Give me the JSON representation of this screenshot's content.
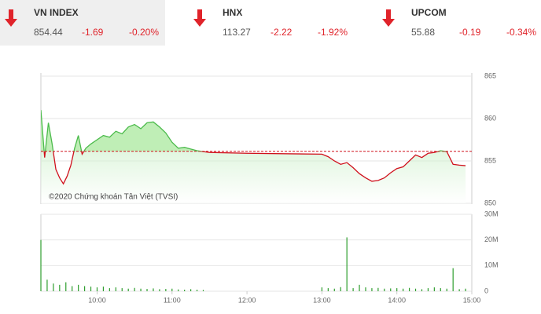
{
  "indices": [
    {
      "name": "VN INDEX",
      "value": 854.44,
      "change": -1.69,
      "percent": "-0.20%"
    },
    {
      "name": "HNX",
      "value": 113.27,
      "change": -2.22,
      "percent": "-1.92%"
    },
    {
      "name": "UPCOM",
      "value": 55.88,
      "change": -0.19,
      "percent": "-0.34%"
    }
  ],
  "chart_data": [
    {
      "type": "line",
      "annotation": "©2020 Chứng khoán Tân Việt (TVSI)",
      "x": [
        555,
        558,
        561,
        564,
        567,
        570,
        573,
        576,
        579,
        582,
        585,
        588,
        591,
        595,
        600,
        605,
        610,
        615,
        620,
        625,
        630,
        635,
        640,
        645,
        650,
        655,
        660,
        665,
        670,
        675,
        680,
        690,
        720,
        780,
        785,
        790,
        795,
        800,
        805,
        810,
        815,
        820,
        825,
        830,
        835,
        840,
        845,
        850,
        855,
        860,
        865,
        870,
        875,
        880,
        885,
        890,
        895
      ],
      "values": [
        861.0,
        855.4,
        859.5,
        857.0,
        854.0,
        853.0,
        852.3,
        853.2,
        854.5,
        856.5,
        858.0,
        855.8,
        856.5,
        857.0,
        857.5,
        858.0,
        857.8,
        858.5,
        858.2,
        859.0,
        859.3,
        858.8,
        859.5,
        859.6,
        859.0,
        858.3,
        857.2,
        856.5,
        856.6,
        856.4,
        856.2,
        856.0,
        855.9,
        855.8,
        855.5,
        855.0,
        854.6,
        854.8,
        854.2,
        853.5,
        853.0,
        852.6,
        852.7,
        853.0,
        853.6,
        854.1,
        854.3,
        855.0,
        855.7,
        855.4,
        855.9,
        856.0,
        856.2,
        856.1,
        854.6,
        854.5,
        854.44
      ],
      "reference_line": 856.13,
      "color_up": "#4cbb4c",
      "color_down": "#d0101c",
      "reference_color": "#d0101c",
      "xlim": [
        555,
        900
      ],
      "ylim": [
        850,
        865
      ],
      "yticks": [
        850,
        855,
        860,
        865
      ],
      "grid": true
    },
    {
      "type": "bar",
      "x": [
        555,
        560,
        565,
        570,
        575,
        580,
        585,
        590,
        595,
        600,
        605,
        610,
        615,
        620,
        625,
        630,
        635,
        640,
        645,
        650,
        655,
        660,
        665,
        670,
        675,
        680,
        685,
        780,
        785,
        790,
        795,
        800,
        805,
        810,
        815,
        820,
        825,
        830,
        835,
        840,
        845,
        850,
        855,
        860,
        865,
        870,
        875,
        880,
        885,
        890,
        895
      ],
      "values": [
        20,
        4.5,
        3,
        2.5,
        3.5,
        2,
        2.5,
        2,
        1.8,
        1.5,
        1.8,
        1.2,
        1.5,
        1.2,
        1,
        1.3,
        1,
        0.9,
        1.1,
        0.8,
        0.9,
        1,
        0.7,
        0.6,
        0.8,
        0.6,
        0.5,
        1.5,
        1.2,
        1,
        1.6,
        21,
        1.2,
        2.5,
        1.5,
        1.2,
        1.3,
        1,
        1.1,
        1.2,
        1,
        1.3,
        1,
        0.8,
        1.2,
        1.5,
        1.2,
        1,
        9,
        0.8,
        1
      ],
      "color": "#2e9e2e",
      "xlim": [
        555,
        900
      ],
      "ylim": [
        0,
        30
      ],
      "yticks": [
        0,
        {
          "value": 10,
          "label": "10M"
        },
        {
          "value": 20,
          "label": "20M"
        },
        {
          "value": 30,
          "label": "30M"
        }
      ],
      "xticks": [
        {
          "value": 600,
          "label": "10:00"
        },
        {
          "value": 660,
          "label": "11:00"
        },
        {
          "value": 720,
          "label": "12:00"
        },
        {
          "value": 780,
          "label": "13:00"
        },
        {
          "value": 840,
          "label": "14:00"
        },
        {
          "value": 900,
          "label": "15:00"
        }
      ],
      "grid": true
    }
  ]
}
